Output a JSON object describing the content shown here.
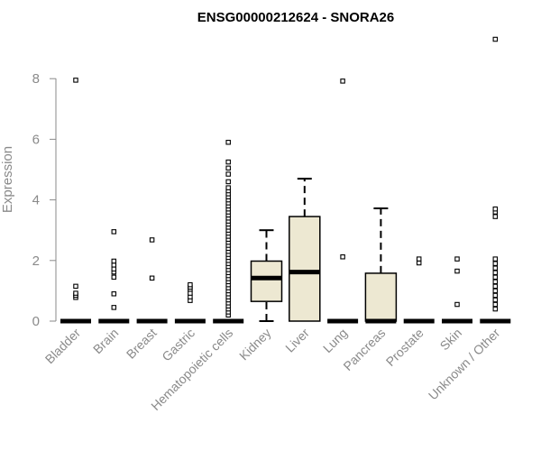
{
  "chart_data": {
    "type": "boxplot",
    "title": "ENSG00000212624 - SNORA26",
    "xlabel": "",
    "ylabel": "Expression",
    "ylim": [
      0,
      9.3
    ],
    "yticks": [
      0,
      2,
      4,
      6,
      8
    ],
    "ytick_labels": [
      "0",
      "2",
      "4",
      "6",
      "8"
    ],
    "categories": [
      "Bladder",
      "Brain",
      "Breast",
      "Gastric",
      "Hematopoietic cells",
      "Kidney",
      "Liver",
      "Lung",
      "Pancreas",
      "Prostate",
      "Skin",
      "Unknown / Other"
    ],
    "box_fill": "#ede8d2",
    "boxes": [
      {
        "name": "Bladder",
        "whisker_low": 0,
        "q1": 0,
        "median": 0,
        "q3": 0,
        "whisker_high": 0,
        "outliers": [
          0.78,
          0.85,
          0.92,
          1.15,
          7.95
        ]
      },
      {
        "name": "Brain",
        "whisker_low": 0,
        "q1": 0,
        "median": 0,
        "q3": 0,
        "whisker_high": 0,
        "outliers": [
          0.45,
          0.9,
          1.45,
          1.62,
          1.72,
          1.85,
          1.98,
          2.95
        ]
      },
      {
        "name": "Breast",
        "whisker_low": 0,
        "q1": 0,
        "median": 0,
        "q3": 0,
        "whisker_high": 0,
        "outliers": [
          1.42,
          2.68
        ]
      },
      {
        "name": "Gastric",
        "whisker_low": 0,
        "q1": 0,
        "median": 0,
        "q3": 0,
        "whisker_high": 0,
        "outliers": [
          0.68,
          0.8,
          0.92,
          1.05,
          1.12,
          1.2
        ]
      },
      {
        "name": "Hematopoietic cells",
        "whisker_low": 0,
        "q1": 0,
        "median": 0,
        "q3": 0,
        "whisker_high": 0,
        "outliers": [
          0.2,
          0.3,
          0.4,
          0.5,
          0.6,
          0.7,
          0.8,
          0.9,
          1.0,
          1.1,
          1.2,
          1.3,
          1.4,
          1.5,
          1.6,
          1.7,
          1.8,
          1.9,
          2.0,
          2.1,
          2.2,
          2.3,
          2.4,
          2.5,
          2.6,
          2.7,
          2.8,
          2.9,
          3.0,
          3.1,
          3.2,
          3.3,
          3.4,
          3.5,
          3.6,
          3.7,
          3.8,
          3.9,
          4.0,
          4.1,
          4.2,
          4.3,
          4.4,
          4.6,
          4.85,
          5.05,
          5.25,
          5.9
        ]
      },
      {
        "name": "Kidney",
        "whisker_low": 0,
        "q1": 0.65,
        "median": 1.42,
        "q3": 1.98,
        "whisker_high": 3.0,
        "outliers": []
      },
      {
        "name": "Liver",
        "whisker_low": 0,
        "q1": 0,
        "median": 1.62,
        "q3": 3.45,
        "whisker_high": 4.7,
        "outliers": []
      },
      {
        "name": "Lung",
        "whisker_low": 0,
        "q1": 0,
        "median": 0,
        "q3": 0,
        "whisker_high": 0,
        "outliers": [
          2.12,
          7.92
        ]
      },
      {
        "name": "Pancreas",
        "whisker_low": 0,
        "q1": 0,
        "median": 0,
        "q3": 1.58,
        "whisker_high": 3.72,
        "outliers": []
      },
      {
        "name": "Prostate",
        "whisker_low": 0,
        "q1": 0,
        "median": 0,
        "q3": 0,
        "whisker_high": 0,
        "outliers": [
          1.92,
          2.05
        ]
      },
      {
        "name": "Skin",
        "whisker_low": 0,
        "q1": 0,
        "median": 0,
        "q3": 0,
        "whisker_high": 0,
        "outliers": [
          0.55,
          1.65,
          2.05
        ]
      },
      {
        "name": "Unknown / Other",
        "whisker_low": 0,
        "q1": 0,
        "median": 0,
        "q3": 0,
        "whisker_high": 0,
        "outliers": [
          0.4,
          0.55,
          0.7,
          0.85,
          1.0,
          1.15,
          1.3,
          1.45,
          1.6,
          1.75,
          1.9,
          2.05,
          3.45,
          3.6,
          3.7,
          9.3
        ]
      }
    ]
  }
}
